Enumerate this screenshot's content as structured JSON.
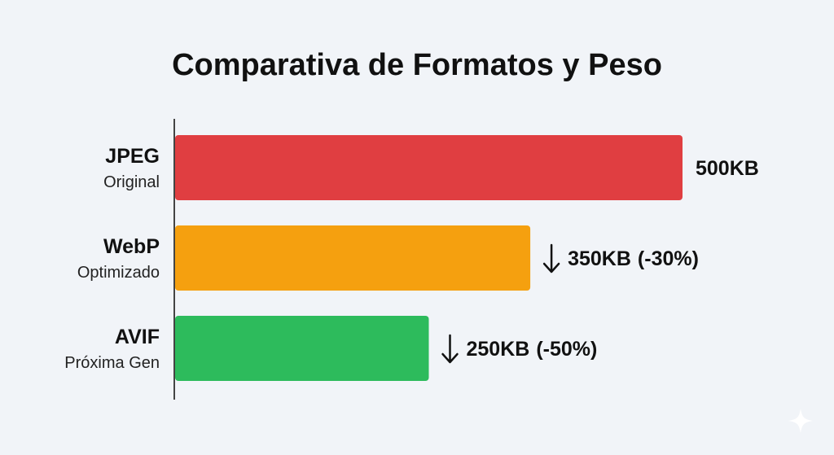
{
  "chart_data": {
    "type": "bar",
    "orientation": "horizontal",
    "title": "Comparativa de Formatos y Peso",
    "xlabel": "",
    "ylabel": "",
    "unit": "KB",
    "xlim": [
      0,
      500
    ],
    "grid": false,
    "legend": "none",
    "categories": [
      {
        "name": "JPEG",
        "subtitle": "Original",
        "value": 500,
        "label": "500KB",
        "delta": "",
        "trend_icon": "",
        "color": "#e03e41"
      },
      {
        "name": "WebP",
        "subtitle": "Optimizado",
        "value": 350,
        "label": "350KB",
        "delta": "(-30%)",
        "trend_icon": "arrow-down-icon",
        "color": "#f5a00f"
      },
      {
        "name": "AVIF",
        "subtitle": "Próxima Gen",
        "value": 250,
        "label": "250KB",
        "delta": "(-50%)",
        "trend_icon": "arrow-down-icon",
        "color": "#2dbb5c"
      }
    ]
  },
  "decor": {
    "corner_icon": "sparkle-icon"
  }
}
